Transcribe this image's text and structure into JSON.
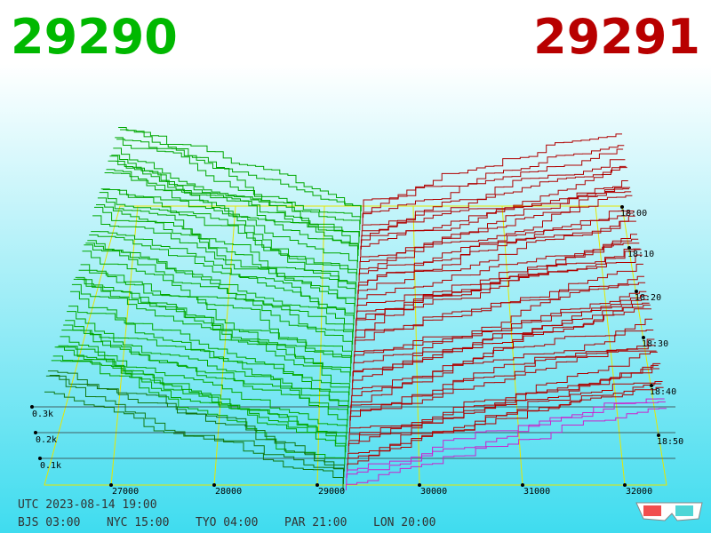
{
  "header": {
    "bid": "29290",
    "ask": "29291"
  },
  "price_axis": [
    "27000",
    "28000",
    "29000",
    "30000",
    "31000",
    "32000"
  ],
  "time_axis": [
    "18:00",
    "18:10",
    "18:20",
    "18:30",
    "18:40",
    "18:50"
  ],
  "depth_axis": [
    "0.3k",
    "0.2k",
    "0.1k"
  ],
  "footer": {
    "utc": "UTC 2023-08-14 19:00",
    "zones": [
      "BJS 03:00",
      "NYC 15:00",
      "TYO 04:00",
      "PAR 21:00",
      "LON 20:00"
    ]
  }
}
